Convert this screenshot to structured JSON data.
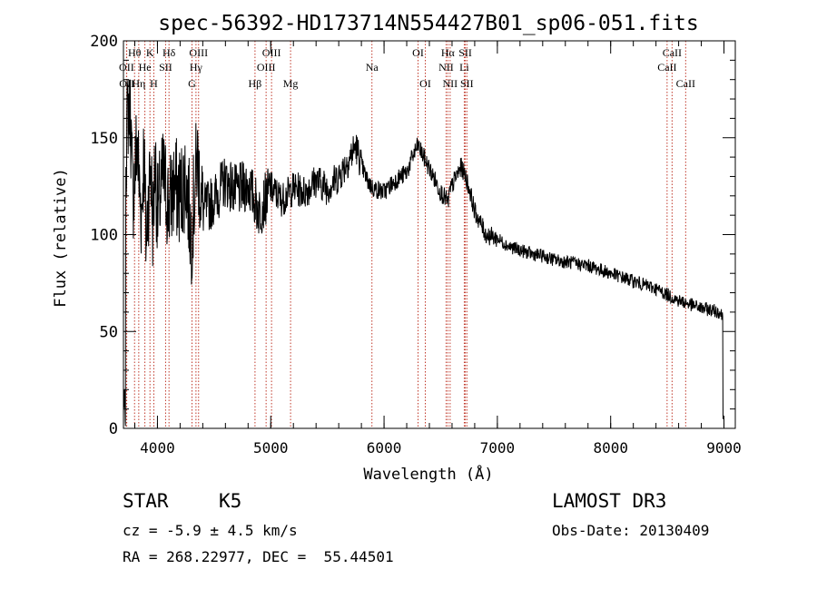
{
  "chart_data": {
    "type": "line",
    "title": "spec-56392-HD173714N554427B01_sp06-051.fits",
    "xlabel": "Wavelength (Å)",
    "ylabel": "Flux (relative)",
    "xlim": [
      3700,
      9100
    ],
    "ylim": [
      0,
      200
    ],
    "x_ticks": [
      4000,
      5000,
      6000,
      7000,
      8000,
      9000
    ],
    "y_ticks": [
      0,
      50,
      100,
      150,
      200
    ],
    "series": [
      {
        "name": "flux",
        "x": [
          3700,
          3720,
          3740,
          3760,
          3780,
          3800,
          3820,
          3840,
          3860,
          3880,
          3900,
          3920,
          3940,
          3960,
          3980,
          4000,
          4050,
          4100,
          4150,
          4200,
          4250,
          4300,
          4350,
          4400,
          4500,
          4600,
          4700,
          4800,
          4900,
          5000,
          5100,
          5200,
          5300,
          5400,
          5500,
          5600,
          5700,
          5750,
          5800,
          5850,
          5900,
          6000,
          6100,
          6200,
          6250,
          6300,
          6350,
          6400,
          6450,
          6500,
          6550,
          6563,
          6580,
          6620,
          6680,
          6720,
          6760,
          6800,
          6850,
          6900,
          7000,
          7100,
          7200,
          7300,
          7400,
          7500,
          7600,
          7700,
          7800,
          7900,
          8000,
          8100,
          8200,
          8300,
          8400,
          8500,
          8600,
          8700,
          8800,
          8900,
          8960,
          8990,
          9000
        ],
        "y": [
          5,
          140,
          165,
          170,
          120,
          130,
          150,
          125,
          110,
          145,
          95,
          120,
          135,
          105,
          140,
          110,
          130,
          115,
          125,
          120,
          130,
          100,
          140,
          112,
          118,
          128,
          122,
          126,
          112,
          124,
          118,
          124,
          122,
          128,
          124,
          130,
          140,
          146,
          136,
          128,
          124,
          122,
          128,
          132,
          140,
          146,
          140,
          134,
          128,
          122,
          118,
          116,
          122,
          128,
          135,
          130,
          122,
          112,
          106,
          100,
          98,
          94,
          92,
          90,
          89,
          87,
          86,
          85,
          84,
          82,
          80,
          78,
          76,
          74,
          72,
          69,
          66,
          64,
          62,
          61,
          60,
          58,
          2
        ]
      }
    ],
    "lines": [
      {
        "name": "Hθ",
        "x": 3798,
        "row": 1
      },
      {
        "name": "K",
        "x": 3934,
        "row": 1
      },
      {
        "name": "Hδ",
        "x": 4102,
        "row": 1
      },
      {
        "name": "OIII",
        "x": 4363,
        "row": 1
      },
      {
        "name": "OIII",
        "x": 5007,
        "row": 1
      },
      {
        "name": "OI",
        "x": 6300,
        "row": 1
      },
      {
        "name": "Hα",
        "x": 6563,
        "row": 1
      },
      {
        "name": "SII",
        "x": 6717,
        "row": 1
      },
      {
        "name": "CaII",
        "x": 8542,
        "row": 1
      },
      {
        "name": "OII",
        "x": 3727,
        "row": 2
      },
      {
        "name": "He",
        "x": 3889,
        "row": 2
      },
      {
        "name": "SII",
        "x": 4072,
        "row": 2
      },
      {
        "name": "Hγ",
        "x": 4340,
        "row": 2
      },
      {
        "name": "OIII",
        "x": 4959,
        "row": 2
      },
      {
        "name": "Na",
        "x": 5893,
        "row": 2
      },
      {
        "name": "NII",
        "x": 6548,
        "row": 2
      },
      {
        "name": "Li",
        "x": 6708,
        "row": 2
      },
      {
        "name": "CaII",
        "x": 8498,
        "row": 2
      },
      {
        "name": "OII",
        "x": 3729,
        "row": 3
      },
      {
        "name": "Hη",
        "x": 3835,
        "row": 3
      },
      {
        "name": "H",
        "x": 3968,
        "row": 3
      },
      {
        "name": "G",
        "x": 4305,
        "row": 3
      },
      {
        "name": "Hβ",
        "x": 4861,
        "row": 3
      },
      {
        "name": "Mg",
        "x": 5175,
        "row": 3
      },
      {
        "name": "OI",
        "x": 6364,
        "row": 3
      },
      {
        "name": "NII",
        "x": 6583,
        "row": 3
      },
      {
        "name": "SII",
        "x": 6731,
        "row": 3
      },
      {
        "name": "CaII",
        "x": 8662,
        "row": 3
      }
    ]
  },
  "info": {
    "class": "STAR",
    "subclass": "K5",
    "survey": "LAMOST DR3",
    "cz": "cz = -5.9 ± 4.5 km/s",
    "obs_date": "Obs-Date: 20130409",
    "radec": "RA = 268.22977, DEC =  55.44501"
  }
}
